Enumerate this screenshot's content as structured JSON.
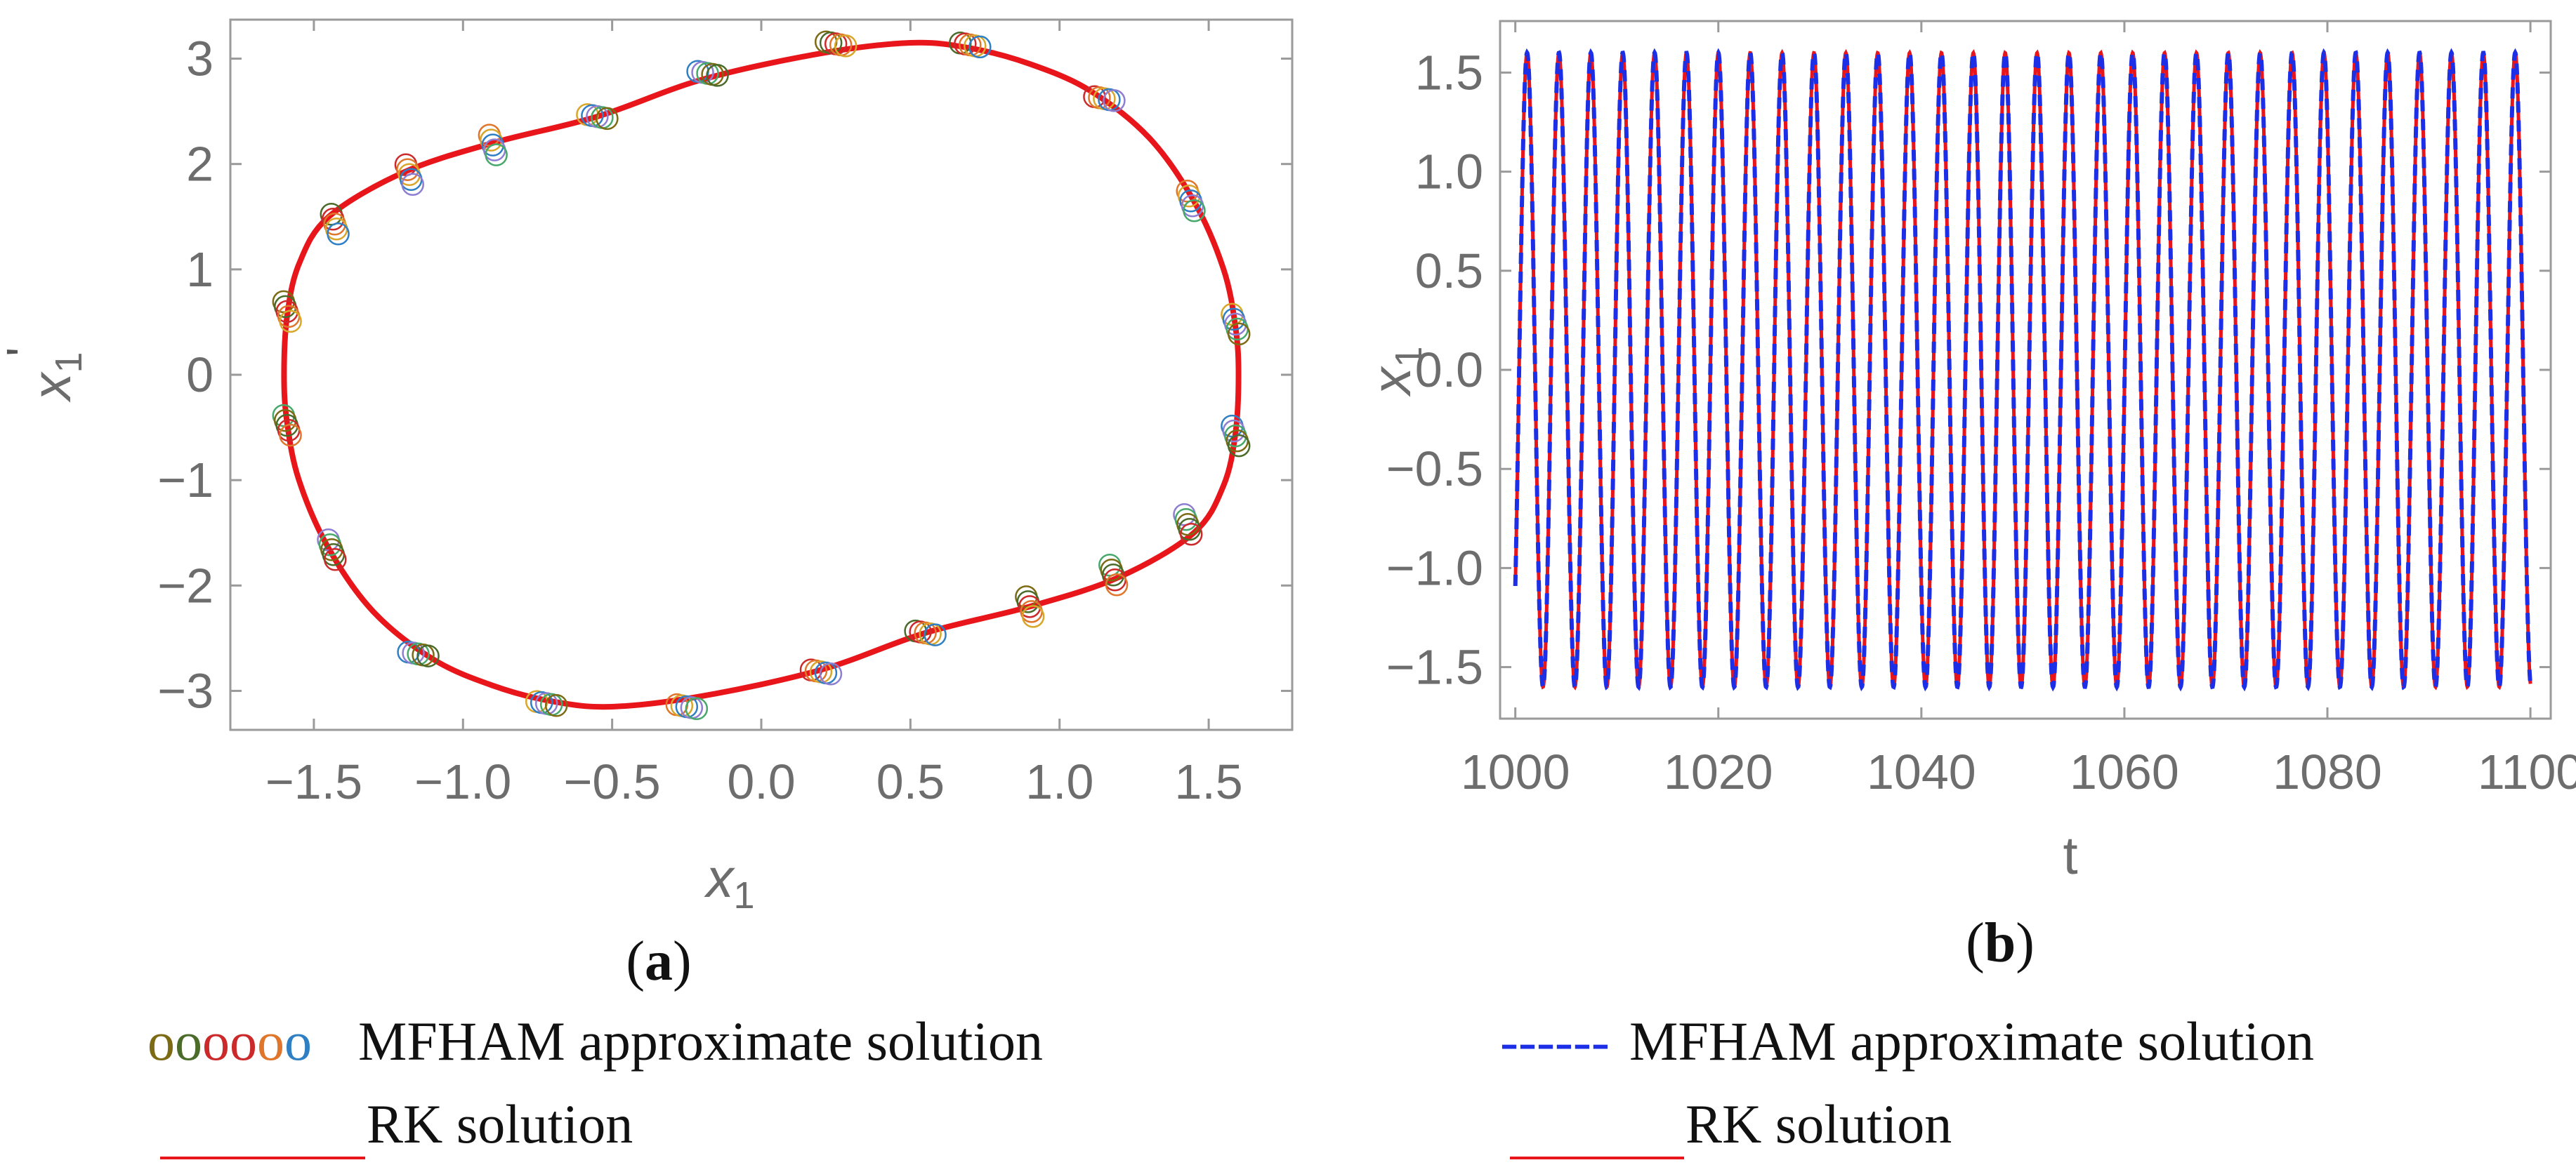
{
  "colors": {
    "rk": "#e8151b",
    "mfham_dash": "#1c2fe6",
    "axis": "#9a9a9a",
    "tick_text": "#6d6d6d",
    "marker_colors": [
      "#7d6a14",
      "#4b6b2a",
      "#cc2a2a",
      "#e0762b",
      "#d9a62a",
      "#2f7fc4",
      "#8d7ed1",
      "#47a86b"
    ]
  },
  "chart_data": [
    {
      "id": "a",
      "type": "scatter",
      "title": "",
      "panel_label": {
        "open": "(",
        "letter": "a",
        "close": ")"
      },
      "xlabel": "x",
      "xlabel_sub": "1",
      "ylabel": "x",
      "ylabel_sub": "1",
      "ylabel_prime": "'",
      "xlim": [
        -1.78,
        1.78
      ],
      "ylim": [
        -3.37,
        3.37
      ],
      "xticks": [
        -1.5,
        -1.0,
        -0.5,
        0.0,
        0.5,
        1.0,
        1.5
      ],
      "xtick_labels": [
        "−1.5",
        "−1.0",
        "−0.5",
        "0.0",
        "0.5",
        "1.0",
        "1.5"
      ],
      "yticks": [
        3,
        2,
        1,
        0,
        -1,
        -2,
        -3
      ],
      "ytick_labels": [
        "3",
        "2",
        "1",
        "0",
        "−1",
        "−2",
        "−3"
      ],
      "series": [
        {
          "name": "RK solution",
          "style": "line",
          "points": [
            [
              -1.6,
              0.0
            ],
            [
              -1.59,
              0.55
            ],
            [
              -1.55,
              1.05
            ],
            [
              -1.45,
              1.5
            ],
            [
              -1.2,
              1.92
            ],
            [
              -0.9,
              2.2
            ],
            [
              -0.55,
              2.45
            ],
            [
              -0.2,
              2.8
            ],
            [
              0.2,
              3.05
            ],
            [
              0.5,
              3.15
            ],
            [
              0.7,
              3.1
            ],
            [
              0.9,
              2.95
            ],
            [
              1.1,
              2.7
            ],
            [
              1.3,
              2.25
            ],
            [
              1.45,
              1.65
            ],
            [
              1.55,
              1.0
            ],
            [
              1.59,
              0.45
            ],
            [
              1.6,
              0.0
            ],
            [
              1.59,
              -0.55
            ],
            [
              1.55,
              -1.05
            ],
            [
              1.45,
              -1.5
            ],
            [
              1.2,
              -1.92
            ],
            [
              0.9,
              -2.2
            ],
            [
              0.55,
              -2.45
            ],
            [
              0.2,
              -2.8
            ],
            [
              -0.2,
              -3.05
            ],
            [
              -0.5,
              -3.15
            ],
            [
              -0.7,
              -3.1
            ],
            [
              -0.9,
              -2.95
            ],
            [
              -1.1,
              -2.7
            ],
            [
              -1.3,
              -2.25
            ],
            [
              -1.45,
              -1.65
            ],
            [
              -1.55,
              -1.0
            ],
            [
              -1.59,
              -0.45
            ],
            [
              -1.6,
              0.0
            ]
          ]
        },
        {
          "name": "MFHAM approximate solution",
          "style": "circles",
          "points": [
            [
              0.25,
              3.14
            ],
            [
              0.7,
              3.13
            ],
            [
              1.15,
              2.62
            ],
            [
              1.44,
              1.65
            ],
            [
              1.59,
              0.48
            ],
            [
              1.59,
              -0.58
            ],
            [
              1.43,
              -1.42
            ],
            [
              1.18,
              -1.9
            ],
            [
              0.9,
              -2.2
            ],
            [
              0.55,
              -2.45
            ],
            [
              0.2,
              -2.82
            ],
            [
              -0.25,
              -3.15
            ],
            [
              -0.72,
              -3.12
            ],
            [
              -1.15,
              -2.65
            ],
            [
              -1.44,
              -1.66
            ],
            [
              -1.59,
              -0.48
            ],
            [
              -1.59,
              0.6
            ],
            [
              -1.43,
              1.43
            ],
            [
              -1.18,
              1.9
            ],
            [
              -0.9,
              2.18
            ],
            [
              -0.55,
              2.45
            ],
            [
              -0.18,
              2.86
            ]
          ]
        }
      ]
    },
    {
      "id": "b",
      "type": "line",
      "title": "",
      "panel_label": {
        "open": "(",
        "letter": "b",
        "close": ")"
      },
      "xlabel": "t",
      "ylabel": "x",
      "ylabel_sub": "1",
      "xlim": [
        998.5,
        1102
      ],
      "ylim": [
        -1.76,
        1.76
      ],
      "xticks": [
        1000,
        1020,
        1040,
        1060,
        1080,
        1100
      ],
      "xtick_labels": [
        "1000",
        "1020",
        "1040",
        "1060",
        "1080",
        "1100"
      ],
      "yticks": [
        1.5,
        1.0,
        0.5,
        0.0,
        -0.5,
        -1.0,
        -1.5
      ],
      "ytick_labels": [
        "1.5",
        "1.0",
        "0.5",
        "0.0",
        "−0.5",
        "−1.0",
        "−1.5"
      ],
      "series": [
        {
          "name": "RK solution",
          "style": "solid",
          "amplitude": 1.6,
          "period": 3.14,
          "t_start": 1000,
          "t_end": 1100,
          "phase": -0.75
        },
        {
          "name": "MFHAM approximate solution",
          "style": "dashed",
          "amplitude": 1.6,
          "period": 3.14,
          "t_start": 1000,
          "t_end": 1100,
          "phase": -0.75
        }
      ]
    }
  ],
  "legend": {
    "left": {
      "marker_glyphs": "oooooo",
      "mfham_label": "MFHAM approximate solution",
      "rk_label": "RK solution"
    },
    "right": {
      "dash_glyphs": "------",
      "mfham_label": "MFHAM approximate solution",
      "rk_label": "RK solution"
    }
  }
}
